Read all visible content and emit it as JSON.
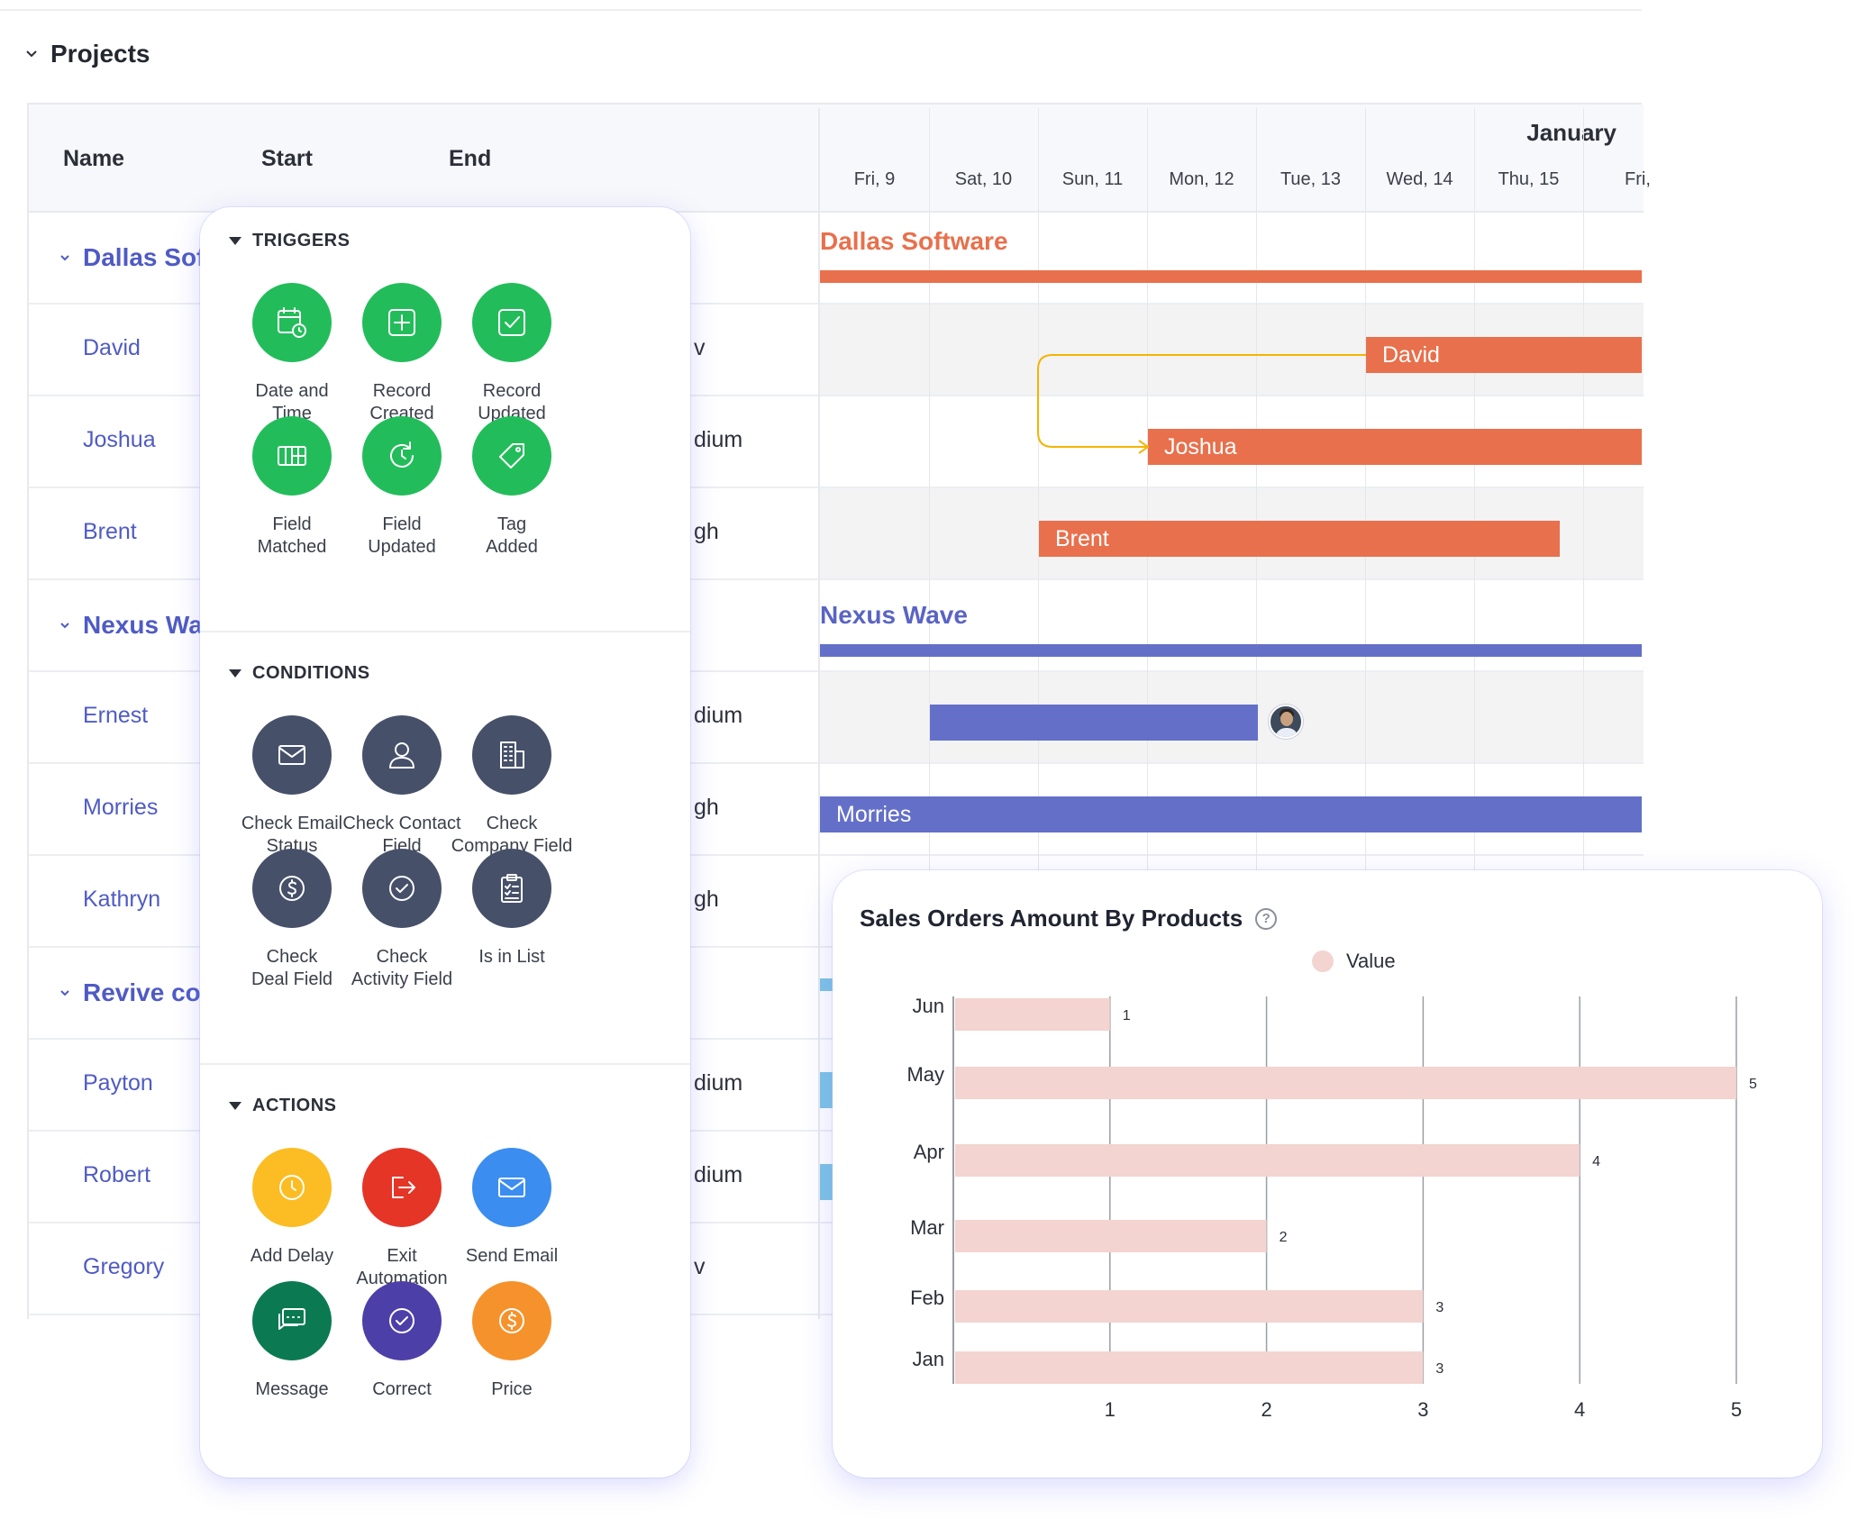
{
  "projects_title": "Projects",
  "gantt": {
    "columns": {
      "name": "Name",
      "start": "Start",
      "end": "End"
    },
    "month": "January",
    "days": [
      "Fri, 9",
      "Sat, 10",
      "Sun, 11",
      "Mon, 12",
      "Tue, 13",
      "Wed, 14",
      "Thu, 15",
      "Fri,"
    ],
    "rows": [
      {
        "name": "Dallas Sof",
        "type": "group",
        "trunc": ""
      },
      {
        "name": "David",
        "type": "task",
        "trunc": "v"
      },
      {
        "name": "Joshua",
        "type": "task",
        "trunc": "dium"
      },
      {
        "name": "Brent",
        "type": "task",
        "trunc": "gh"
      },
      {
        "name": "Nexus Wa",
        "type": "group",
        "trunc": ""
      },
      {
        "name": "Ernest",
        "type": "task",
        "trunc": "dium"
      },
      {
        "name": "Morries",
        "type": "task",
        "trunc": "gh"
      },
      {
        "name": "Kathryn",
        "type": "task",
        "trunc": "gh"
      },
      {
        "name": "Revive co",
        "type": "group",
        "trunc": ""
      },
      {
        "name": "Payton",
        "type": "task",
        "trunc": "dium"
      },
      {
        "name": "Robert",
        "type": "task",
        "trunc": "dium"
      },
      {
        "name": "Gregory",
        "type": "task",
        "trunc": "v"
      }
    ],
    "timeline": {
      "dallas_label": "Dallas Software",
      "david_bar": "David",
      "joshua_bar": "Joshua",
      "brent_bar": "Brent",
      "nexus_label": "Nexus Wave",
      "morries_bar": "Morries",
      "colors": {
        "orange": "#e8704c",
        "indigo": "#6470c8",
        "connector": "#f4b400",
        "light_blue": "#7cc4e4"
      }
    }
  },
  "automation": {
    "triggers_title": "TRIGGERS",
    "conditions_title": "CONDITIONS",
    "actions_title": "ACTIONS",
    "triggers": [
      {
        "label": "Date and\nTime",
        "icon": "calendar-clock-icon"
      },
      {
        "label": "Record\nCreated",
        "icon": "plus-square-icon"
      },
      {
        "label": "Record\nUpdated",
        "icon": "check-square-icon"
      },
      {
        "label": "Field\nMatched",
        "icon": "columns-icon"
      },
      {
        "label": "Field\nUpdated",
        "icon": "refresh-clock-icon"
      },
      {
        "label": "Tag\nAdded",
        "icon": "tag-icon"
      }
    ],
    "conditions": [
      {
        "label": "Check Email\nStatus",
        "icon": "mail-icon"
      },
      {
        "label": "Check Contact\nField",
        "icon": "user-icon"
      },
      {
        "label": "Check\nCompany Field",
        "icon": "building-icon"
      },
      {
        "label": "Check\nDeal Field",
        "icon": "dollar-icon"
      },
      {
        "label": "Check\nActivity Field",
        "icon": "check-circle-icon"
      },
      {
        "label": "Is in List",
        "icon": "clipboard-list-icon"
      }
    ],
    "actions": [
      {
        "label": "Add Delay",
        "icon": "clock-icon"
      },
      {
        "label": "Exit\nAutomation",
        "icon": "exit-icon"
      },
      {
        "label": "Send Email",
        "icon": "mail-icon"
      },
      {
        "label": "Message",
        "icon": "chat-icon"
      },
      {
        "label": "Correct",
        "icon": "check-circle-icon"
      },
      {
        "label": "Price",
        "icon": "dollar-icon"
      }
    ],
    "colors": {
      "trigger": "#22bd5a",
      "condition": "#465069",
      "delay": "#fbbd23",
      "exit": "#e53527",
      "email": "#3b8def",
      "message": "#0b7a52",
      "correct": "#4d3fa8",
      "price": "#f6922b"
    }
  },
  "chart_card": {
    "title": "Sales Orders Amount By Products",
    "help": "?",
    "legend": "Value"
  },
  "chart_data": {
    "type": "bar",
    "orientation": "horizontal",
    "title": "Sales Orders Amount By Products",
    "categories": [
      "Jun",
      "May",
      "Apr",
      "Mar",
      "Feb",
      "Jan"
    ],
    "series": [
      {
        "name": "Value",
        "values": [
          1,
          5,
          4,
          2,
          3,
          3
        ]
      }
    ],
    "x_ticks": [
      1,
      2,
      3,
      4,
      5
    ],
    "xlim": [
      0,
      5
    ],
    "grid": true,
    "legend_position": "top",
    "color": "#f3d4d0"
  }
}
